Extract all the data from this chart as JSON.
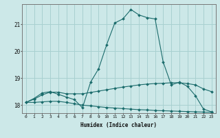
{
  "title": "",
  "xlabel": "Humidex (Indice chaleur)",
  "ylabel": "",
  "background_color": "#cce8e8",
  "grid_color": "#a8d0d0",
  "line_color": "#1a6b6b",
  "xlim": [
    -0.5,
    23.5
  ],
  "ylim": [
    17.7,
    21.75
  ],
  "yticks": [
    18,
    19,
    20,
    21
  ],
  "xticks": [
    0,
    1,
    2,
    3,
    4,
    5,
    6,
    7,
    8,
    9,
    10,
    11,
    12,
    13,
    14,
    15,
    16,
    17,
    18,
    19,
    20,
    21,
    22,
    23
  ],
  "line1_x": [
    0,
    1,
    2,
    3,
    4,
    5,
    6,
    7,
    8,
    9,
    10,
    11,
    12,
    13,
    14,
    15,
    16,
    17,
    18,
    19,
    20,
    21,
    22,
    23
  ],
  "line1_y": [
    18.1,
    18.25,
    18.45,
    18.5,
    18.4,
    18.3,
    18.2,
    17.9,
    18.85,
    19.35,
    20.25,
    21.05,
    21.2,
    21.55,
    21.35,
    21.25,
    21.2,
    19.6,
    18.75,
    18.85,
    18.7,
    18.35,
    17.85,
    17.75
  ],
  "line2_x": [
    0,
    1,
    2,
    3,
    4,
    5,
    6,
    7,
    8,
    9,
    10,
    11,
    12,
    13,
    14,
    15,
    16,
    17,
    18,
    19,
    20,
    21,
    22,
    23
  ],
  "line2_y": [
    18.1,
    18.22,
    18.38,
    18.48,
    18.48,
    18.42,
    18.42,
    18.42,
    18.47,
    18.52,
    18.57,
    18.62,
    18.67,
    18.71,
    18.75,
    18.78,
    18.8,
    18.81,
    18.83,
    18.83,
    18.8,
    18.75,
    18.6,
    18.5
  ],
  "line3_x": [
    0,
    1,
    2,
    3,
    4,
    5,
    6,
    7,
    8,
    9,
    10,
    11,
    12,
    13,
    14,
    15,
    16,
    17,
    18,
    19,
    20,
    21,
    22,
    23
  ],
  "line3_y": [
    18.1,
    18.1,
    18.12,
    18.14,
    18.14,
    18.1,
    18.05,
    18.0,
    17.97,
    17.94,
    17.91,
    17.89,
    17.87,
    17.85,
    17.83,
    17.82,
    17.8,
    17.79,
    17.78,
    17.77,
    17.76,
    17.75,
    17.74,
    17.73
  ]
}
